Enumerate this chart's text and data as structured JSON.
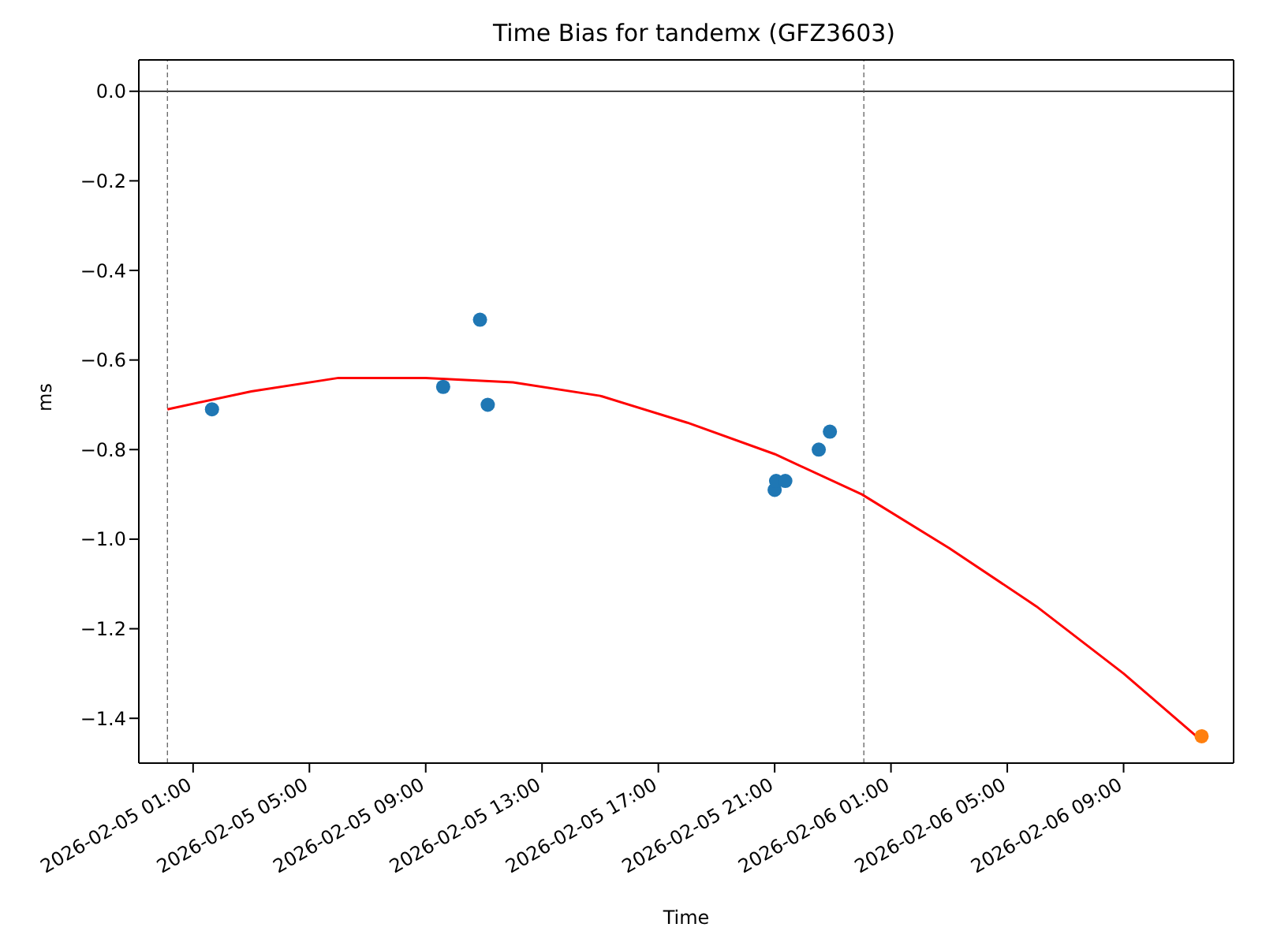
{
  "chart_data": {
    "type": "scatter",
    "title": "Time Bias for tandemx (GFZ3603)",
    "xlabel": "Time",
    "ylabel": "ms",
    "marker": "circle",
    "xlim": [
      "2026-02-04T23:08",
      "2026-02-06T12:47"
    ],
    "xticks": [
      {
        "value": "2026-02-05T01:00",
        "label": "2026-02-05 01:00"
      },
      {
        "value": "2026-02-05T05:00",
        "label": "2026-02-05 05:00"
      },
      {
        "value": "2026-02-05T09:00",
        "label": "2026-02-05 09:00"
      },
      {
        "value": "2026-02-05T13:00",
        "label": "2026-02-05 13:00"
      },
      {
        "value": "2026-02-05T17:00",
        "label": "2026-02-05 17:00"
      },
      {
        "value": "2026-02-05T21:00",
        "label": "2026-02-05 21:00"
      },
      {
        "value": "2026-02-06T01:00",
        "label": "2026-02-06 01:00"
      },
      {
        "value": "2026-02-06T05:00",
        "label": "2026-02-06 05:00"
      },
      {
        "value": "2026-02-06T09:00",
        "label": "2026-02-06 09:00"
      }
    ],
    "ylim": [
      -1.5,
      0.07
    ],
    "yticks": [
      {
        "value": 0,
        "label": "0.0"
      },
      {
        "value": -0.2,
        "label": "−0.2"
      },
      {
        "value": -0.4,
        "label": "−0.4"
      },
      {
        "value": -0.6,
        "label": "−0.6"
      },
      {
        "value": -0.8,
        "label": "−0.8"
      },
      {
        "value": -1.0,
        "label": "−1.0"
      },
      {
        "value": -1.2,
        "label": "−1.2"
      },
      {
        "value": -1.4,
        "label": "−1.4"
      }
    ],
    "ref_lines": [
      {
        "axis": "y",
        "value": 0,
        "color": "#000000",
        "line_style": "solid"
      },
      {
        "axis": "x",
        "value": "2026-02-05T00:07",
        "color": "#555555",
        "line_style": "dashed"
      },
      {
        "axis": "x",
        "value": "2026-02-06T00:04",
        "color": "#555555",
        "line_style": "dashed"
      }
    ],
    "series": [
      {
        "color": "#1f77b4",
        "x": [
          "2026-02-05T01:39",
          "2026-02-05T09:36",
          "2026-02-05T10:52",
          "2026-02-05T11:08",
          "2026-02-05T21:00",
          "2026-02-05T21:03",
          "2026-02-05T21:22",
          "2026-02-05T22:31",
          "2026-02-05T22:54"
        ],
        "values": [
          -0.71,
          -0.66,
          -0.51,
          -0.7,
          -0.89,
          -0.87,
          -0.87,
          -0.8,
          -0.76
        ]
      },
      {
        "type": "line",
        "color": "#ff0000",
        "marker": "none",
        "line_style": "solid",
        "x": [
          "2026-02-05T00:07",
          "2026-02-05T03:00",
          "2026-02-05T06:00",
          "2026-02-05T09:00",
          "2026-02-05T12:00",
          "2026-02-05T15:00",
          "2026-02-05T18:00",
          "2026-02-05T21:00",
          "2026-02-06T00:00",
          "2026-02-06T03:00",
          "2026-02-06T06:00",
          "2026-02-06T09:00",
          "2026-02-06T11:41"
        ],
        "values": [
          -0.71,
          -0.67,
          -0.64,
          -0.64,
          -0.65,
          -0.68,
          -0.74,
          -0.81,
          -0.9,
          -1.02,
          -1.15,
          -1.3,
          -1.45
        ]
      },
      {
        "color": "#ff7f0e",
        "x": [
          "2026-02-06T11:41"
        ],
        "values": [
          -1.44
        ]
      }
    ]
  }
}
